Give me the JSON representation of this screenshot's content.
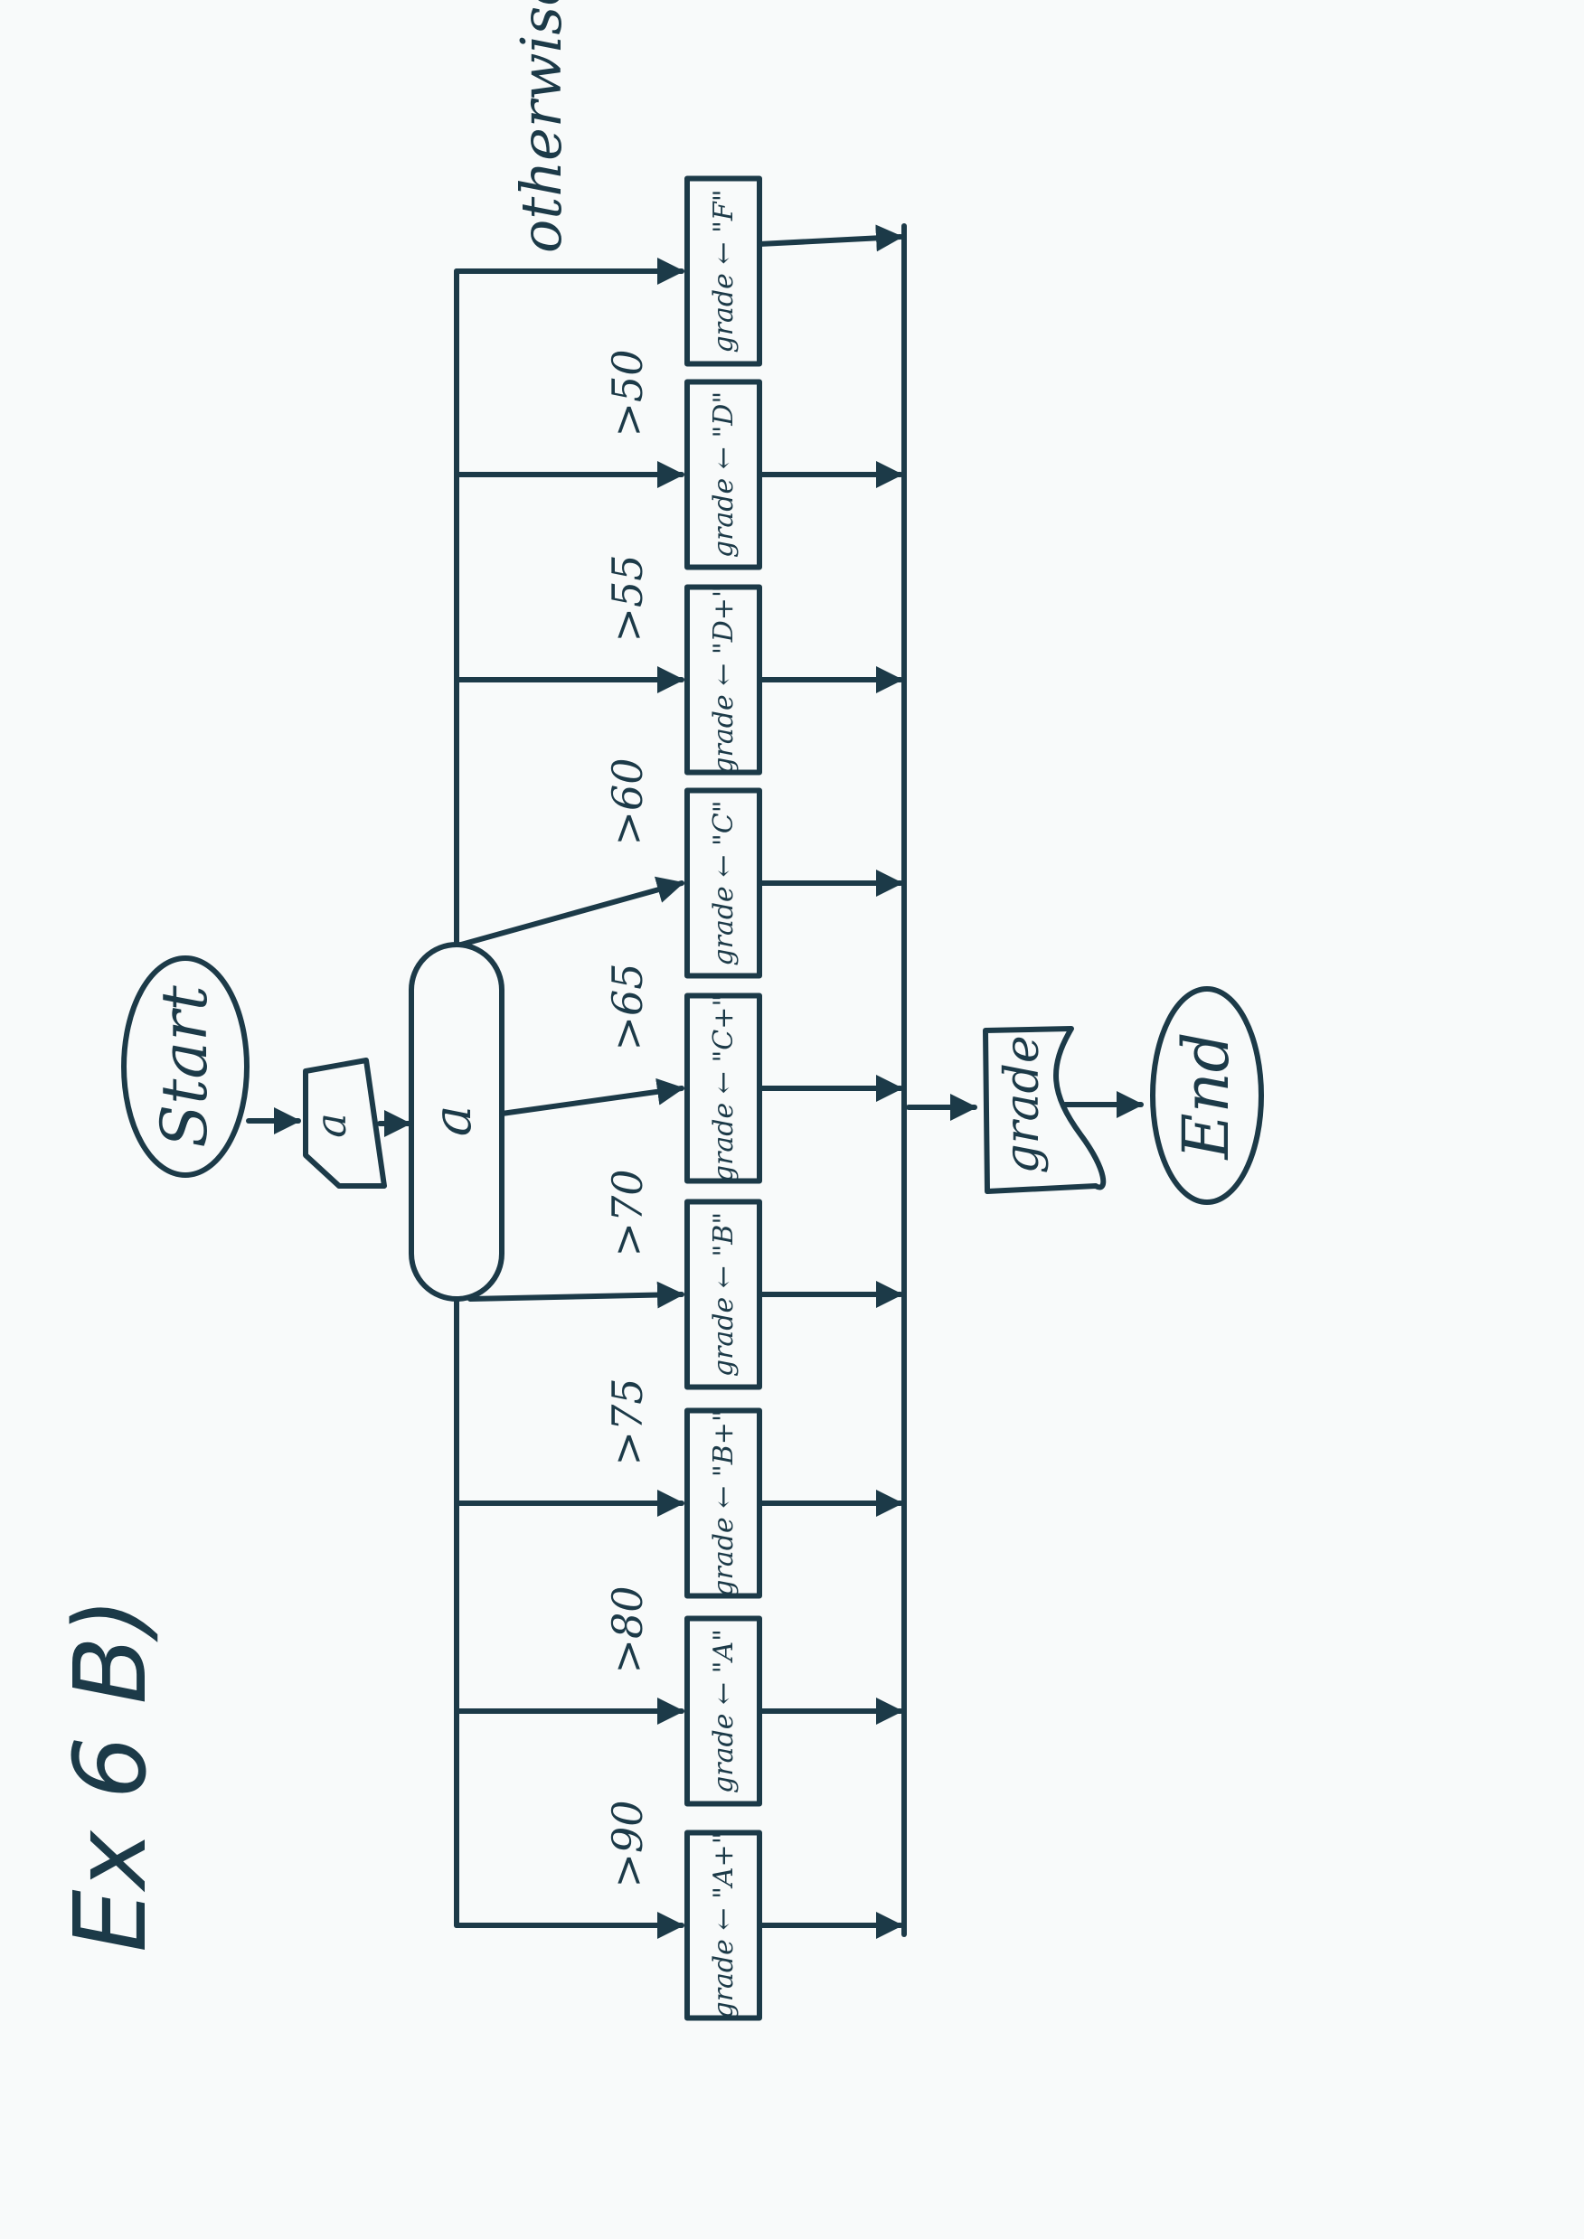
{
  "title": "Ex 6 B)",
  "start_label": "Start",
  "input_label": "a",
  "decision_label": "a",
  "branches": [
    {
      "condition": ">90",
      "action": "grade ← \"A+\""
    },
    {
      "condition": ">80",
      "action": "grade ← \"A\""
    },
    {
      "condition": ">75",
      "action": "grade ← \"B+\""
    },
    {
      "condition": ">70",
      "action": "grade ← \"B\""
    },
    {
      "condition": ">65",
      "action": "grade ← \"C+\""
    },
    {
      "condition": ">60",
      "action": "grade ← \"C\""
    },
    {
      "condition": ">55",
      "action": "grade ← \"D+\""
    },
    {
      "condition": ">50",
      "action": "grade ← \"D\""
    },
    {
      "condition": "otherwise",
      "action": "grade ← \"F\""
    }
  ],
  "output_label": "grade",
  "end_label": "End",
  "colors": {
    "ink": "#1c3a48",
    "paper": "#f8fafa"
  }
}
